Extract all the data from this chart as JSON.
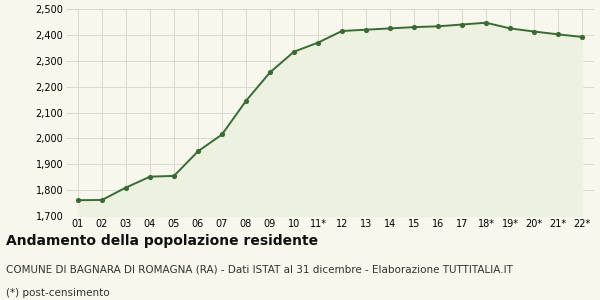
{
  "x_labels": [
    "01",
    "02",
    "03",
    "04",
    "05",
    "06",
    "07",
    "08",
    "09",
    "10",
    "11*",
    "12",
    "13",
    "14",
    "15",
    "16",
    "17",
    "18*",
    "19*",
    "20*",
    "21*",
    "22*"
  ],
  "y_values": [
    1761,
    1762,
    1810,
    1852,
    1855,
    1950,
    2015,
    2145,
    2255,
    2335,
    2370,
    2415,
    2420,
    2425,
    2430,
    2433,
    2440,
    2447,
    2425,
    2413,
    2402,
    2392
  ],
  "line_color": "#3a6b35",
  "fill_color": "#edf2e0",
  "marker_color": "#3a6b35",
  "bg_color": "#f7f7ee",
  "grid_color": "#d0d0c0",
  "ylim": [
    1700,
    2500
  ],
  "yticks": [
    1700,
    1800,
    1900,
    2000,
    2100,
    2200,
    2300,
    2400,
    2500
  ],
  "title": "Andamento della popolazione residente",
  "subtitle": "COMUNE DI BAGNARA DI ROMAGNA (RA) - Dati ISTAT al 31 dicembre - Elaborazione TUTTITALIA.IT",
  "footnote": "(*) post-censimento",
  "title_fontsize": 10,
  "subtitle_fontsize": 7.5,
  "footnote_fontsize": 7.5
}
